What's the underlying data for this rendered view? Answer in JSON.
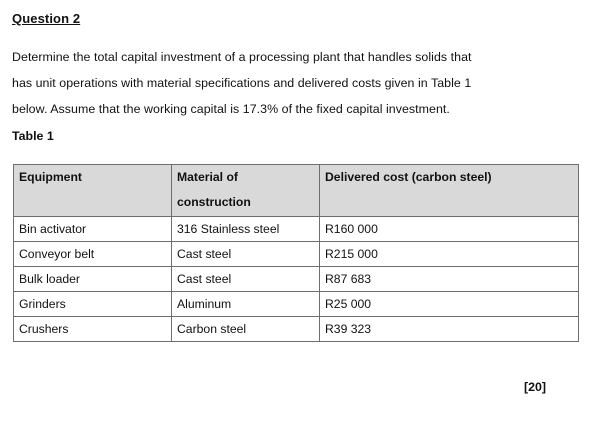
{
  "question": {
    "heading": "Question 2",
    "lines": [
      "Determine the total capital investment of a processing plant that handles solids that",
      "has unit operations with material specifications and delivered costs given in Table 1",
      "below. Assume that the working capital is 17.3% of the fixed capital investment."
    ]
  },
  "table": {
    "caption": "Table 1",
    "headers": [
      "Equipment",
      "Material of construction",
      "Delivered cost (carbon steel)"
    ],
    "rows": [
      [
        "Bin activator",
        "316 Stainless steel",
        "R160 000"
      ],
      [
        "Conveyor belt",
        "Cast steel",
        "R215 000"
      ],
      [
        "Bulk loader",
        "Cast steel",
        "R87 683"
      ],
      [
        "Grinders",
        "Aluminum",
        "R25 000"
      ],
      [
        "Crushers",
        "Carbon steel",
        "R39 323"
      ]
    ]
  },
  "marks": "[20]"
}
